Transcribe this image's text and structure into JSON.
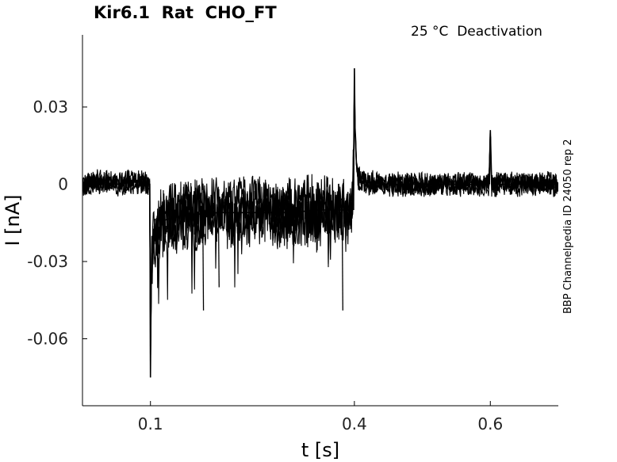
{
  "chart_data": {
    "type": "line",
    "title": "Kir6.1  Rat  CHO_FT",
    "annotation": "25 °C  Deactivation",
    "side_label": "BBP Channelpedia ID 24050 rep 2",
    "xlabel": "t [s]",
    "ylabel": "I [nA]",
    "xlim": [
      0.0,
      0.7
    ],
    "ylim": [
      -0.086,
      0.058
    ],
    "xticks": [
      0.1,
      0.4,
      0.6
    ],
    "xtick_labels": [
      "0.1",
      "0.4",
      "0.6"
    ],
    "yticks": [
      0.03,
      0,
      -0.03,
      -0.06
    ],
    "ytick_labels": [
      "0.03",
      "0",
      "-0.03",
      "-0.06"
    ],
    "grid": false,
    "line_color": "#000000",
    "series": [
      {
        "x": [
          0.0,
          0.02,
          0.05,
          0.08,
          0.099,
          0.1,
          0.101,
          0.102,
          0.105,
          0.11,
          0.12,
          0.15,
          0.2,
          0.25,
          0.3,
          0.35,
          0.38,
          0.397,
          0.399,
          0.4,
          0.401,
          0.403,
          0.405,
          0.41,
          0.45,
          0.5,
          0.55,
          0.598,
          0.6,
          0.602,
          0.65,
          0.7
        ],
        "y": [
          0.0,
          0.001,
          0.0,
          0.001,
          0.0,
          -0.075,
          -0.04,
          -0.03,
          -0.022,
          -0.018,
          -0.014,
          -0.012,
          -0.011,
          -0.011,
          -0.011,
          -0.01,
          -0.01,
          -0.01,
          0.01,
          0.045,
          0.02,
          0.008,
          0.003,
          0.001,
          0.0,
          0.0,
          0.0,
          0.0,
          0.021,
          0.0,
          0.0,
          0.0
        ]
      }
    ]
  }
}
